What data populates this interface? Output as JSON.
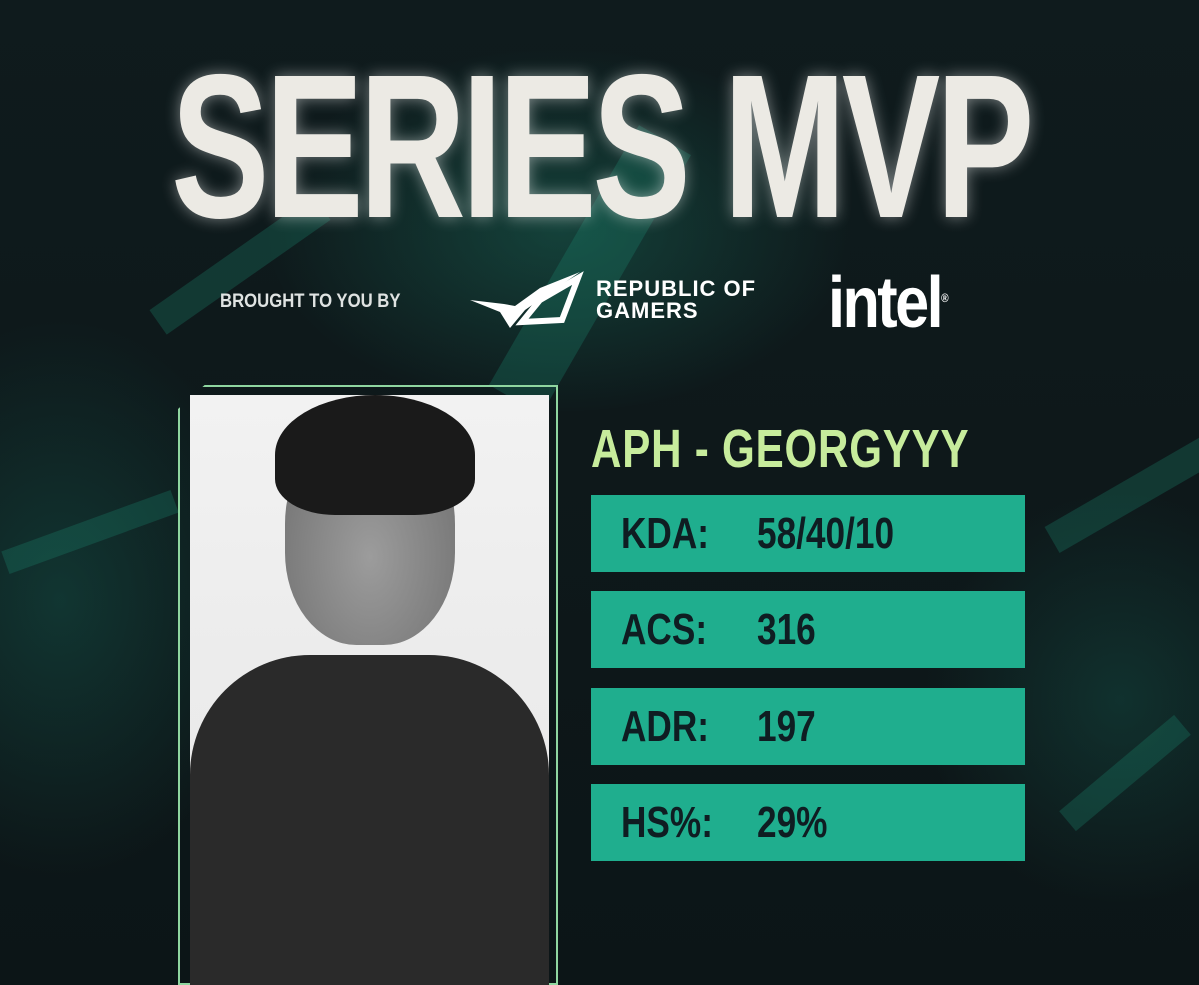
{
  "title": "SERIES MVP",
  "sponsor": {
    "prefix": "BROUGHT TO YOU BY",
    "rog_line1": "REPUBLIC OF",
    "rog_line2": "GAMERS",
    "intel": "intel",
    "intel_mark": "®"
  },
  "player": {
    "name": "APH - GEORGYYY"
  },
  "stats": [
    {
      "label": "KDA:",
      "value": "58/40/10"
    },
    {
      "label": "ACS:",
      "value": "316"
    },
    {
      "label": "ADR:",
      "value": "197"
    },
    {
      "label": "HS%:",
      "value": "29%"
    }
  ],
  "colors": {
    "background": "#0e1719",
    "accent": "#1fae8e",
    "name": "#c7ec9c",
    "stat_text": "#0f1d22"
  }
}
